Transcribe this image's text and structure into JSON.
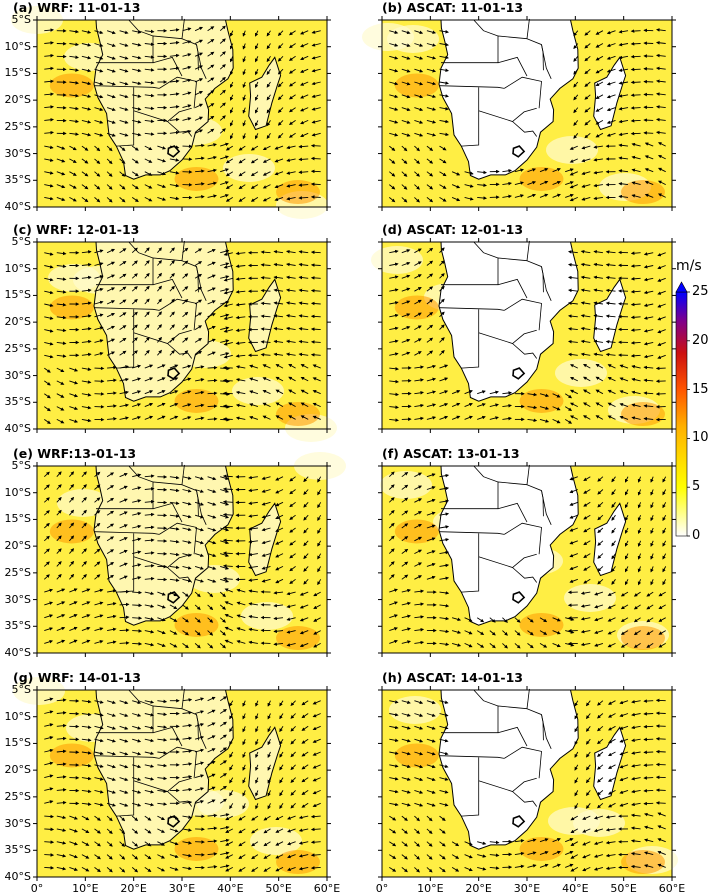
{
  "panels": [
    {
      "id": "a",
      "title": "(a) WRF: 11-01-13",
      "source": "WRF",
      "row": 0,
      "col": 0
    },
    {
      "id": "b",
      "title": "(b) ASCAT: 11-01-13",
      "source": "ASCAT",
      "row": 0,
      "col": 1
    },
    {
      "id": "c",
      "title": "(c) WRF: 12-01-13",
      "source": "WRF",
      "row": 1,
      "col": 0
    },
    {
      "id": "d",
      "title": "(d) ASCAT: 12-01-13",
      "source": "ASCAT",
      "row": 1,
      "col": 1
    },
    {
      "id": "e",
      "title": "(e) WRF:13-01-13",
      "source": "WRF",
      "row": 2,
      "col": 0
    },
    {
      "id": "f",
      "title": "(f) ASCAT: 13-01-13",
      "source": "ASCAT",
      "row": 2,
      "col": 1
    },
    {
      "id": "g",
      "title": "(g) WRF: 14-01-13",
      "source": "WRF",
      "row": 3,
      "col": 0
    },
    {
      "id": "h",
      "title": "(h) ASCAT: 14-01-13",
      "source": "ASCAT",
      "row": 3,
      "col": 1
    }
  ],
  "lat_ticks": [
    "5°S",
    "10°S",
    "15°S",
    "20°S",
    "25°S",
    "30°S",
    "35°S",
    "40°S"
  ],
  "lon_ticks": [
    "0°",
    "10°E",
    "20°E",
    "30°E",
    "40°E",
    "50°E",
    "60°E"
  ],
  "colorbar": {
    "unit": "m/s",
    "min": 0,
    "max": 25,
    "tick_labels": [
      "0",
      "5",
      "10",
      "15",
      "20",
      "25"
    ],
    "tick_values": [
      0,
      5,
      10,
      15,
      20,
      25
    ],
    "colors": [
      "#ffffff",
      "#ffff00",
      "#ff8800",
      "#dd2200",
      "#8a0080",
      "#0000ff"
    ]
  },
  "map_extent": {
    "lon": [
      0,
      60
    ],
    "lat": [
      -40,
      -5
    ]
  }
}
